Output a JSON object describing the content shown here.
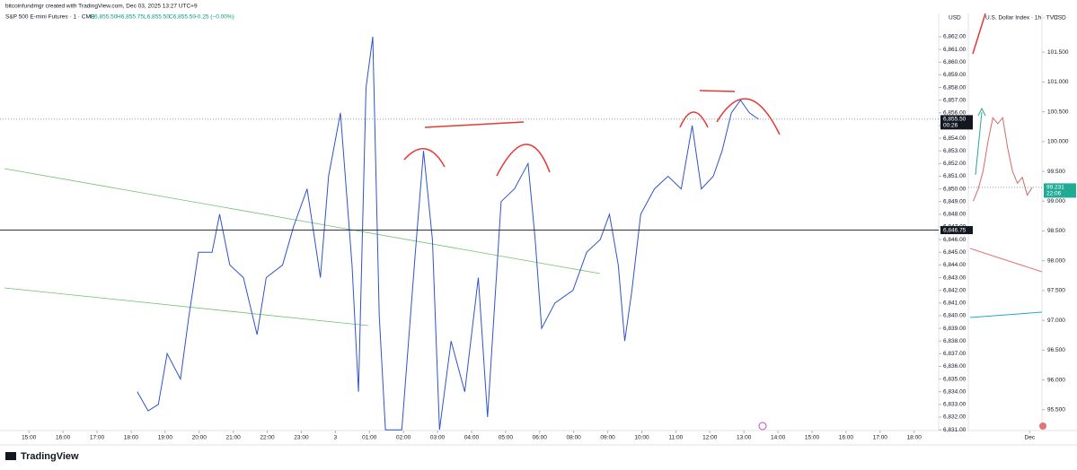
{
  "header": {
    "byline": "bitcoinfundmgr created with TradingView.com, Dec 03, 2025 13:27 UTC+9",
    "symbol": "S&P 500 E-mini Futures · 1 · CME",
    "open": "O6,855.50",
    "high": "H6,855.75",
    "low": "L6,855.50",
    "close": "C6,855.50",
    "change": "−0.25 (−0.00%)"
  },
  "footer": {
    "brand": "TradingView"
  },
  "chart_data": [
    {
      "type": "line",
      "currency": "USD",
      "color": "#2f54c9",
      "x": [
        3.18,
        3.5,
        3.8,
        4.06,
        4.45,
        4.7,
        4.98,
        5.38,
        5.6,
        5.9,
        6.3,
        6.7,
        6.97,
        7.45,
        7.77,
        8.17,
        8.56,
        8.8,
        9.15,
        9.49,
        9.68,
        9.9,
        10.1,
        10.29,
        10.47,
        10.95,
        11.35,
        11.59,
        11.85,
        12.06,
        12.4,
        12.8,
        13.2,
        13.47,
        13.87,
        14.26,
        14.66,
        14.87,
        15.06,
        15.45,
        15.98,
        16.38,
        16.78,
        17.05,
        17.31,
        17.5,
        17.71,
        17.97,
        18.37,
        18.77,
        19.16,
        19.48,
        19.75,
        20.1,
        20.36,
        20.63,
        20.9,
        21.16,
        21.43
      ],
      "values": [
        6834,
        6832.5,
        6833,
        6837,
        6835,
        6840,
        6845,
        6845,
        6848,
        6844,
        6843,
        6838.5,
        6843,
        6844,
        6847,
        6850,
        6843,
        6851,
        6856,
        6844,
        6834,
        6858,
        6862,
        6840,
        6831,
        6831,
        6845,
        6853,
        6846,
        6831,
        6838,
        6834,
        6843,
        6832,
        6849,
        6850,
        6852,
        6846,
        6839,
        6841,
        6842,
        6845,
        6846,
        6848,
        6844,
        6838,
        6842,
        6848,
        6850,
        6851,
        6850,
        6855,
        6850,
        6851,
        6853,
        6856,
        6857,
        6856,
        6855.5
      ],
      "xlim": [
        -0.85,
        26.72
      ],
      "ylim": [
        6830.94,
        6863.84
      ],
      "xticks": [
        {
          "value": 0,
          "label": "15:00"
        },
        {
          "value": 1,
          "label": "16:00"
        },
        {
          "value": 2,
          "label": "17:00"
        },
        {
          "value": 3,
          "label": "18:00"
        },
        {
          "value": 4,
          "label": "19:00"
        },
        {
          "value": 5,
          "label": "20:00"
        },
        {
          "value": 6,
          "label": "21:00"
        },
        {
          "value": 7,
          "label": "22:00"
        },
        {
          "value": 8,
          "label": "23:00"
        },
        {
          "value": 9,
          "label": "3"
        },
        {
          "value": 10,
          "label": "01:00"
        },
        {
          "value": 11,
          "label": "02:00"
        },
        {
          "value": 12,
          "label": "03:00"
        },
        {
          "value": 13,
          "label": "04:00"
        },
        {
          "value": 14,
          "label": "05:00"
        },
        {
          "value": 15,
          "label": "06:00"
        },
        {
          "value": 16,
          "label": "08:00"
        },
        {
          "value": 17,
          "label": "09:00"
        },
        {
          "value": 18,
          "label": "10:00"
        },
        {
          "value": 19,
          "label": "11:00"
        },
        {
          "value": 20,
          "label": "12:00"
        },
        {
          "value": 21,
          "label": "13:00"
        },
        {
          "value": 22,
          "label": "14:00"
        },
        {
          "value": 23,
          "label": "15:00"
        },
        {
          "value": 24,
          "label": "16:00"
        },
        {
          "value": 25,
          "label": "17:00"
        },
        {
          "value": 26,
          "label": "18:00"
        }
      ],
      "yticks": [
        {
          "value": 6831,
          "label": "6,831.00"
        },
        {
          "value": 6832,
          "label": "6,832.00"
        },
        {
          "value": 6833,
          "label": "6,833.00"
        },
        {
          "value": 6834,
          "label": "6,834.00"
        },
        {
          "value": 6835,
          "label": "6,835.00"
        },
        {
          "value": 6836,
          "label": "6,836.00"
        },
        {
          "value": 6837,
          "label": "6,837.00"
        },
        {
          "value": 6838,
          "label": "6,838.00"
        },
        {
          "value": 6839,
          "label": "6,839.00"
        },
        {
          "value": 6840,
          "label": "6,840.00"
        },
        {
          "value": 6841,
          "label": "6,841.00"
        },
        {
          "value": 6842,
          "label": "6,842.00"
        },
        {
          "value": 6843,
          "label": "6,843.00"
        },
        {
          "value": 6844,
          "label": "6,844.00"
        },
        {
          "value": 6845,
          "label": "6,845.00"
        },
        {
          "value": 6846,
          "label": "6,846.00"
        },
        {
          "value": 6847,
          "label": "6,847.00"
        },
        {
          "value": 6848,
          "label": "6,848.00"
        },
        {
          "value": 6849,
          "label": "6,849.00"
        },
        {
          "value": 6850,
          "label": "6,850.00"
        },
        {
          "value": 6851,
          "label": "6,851.00"
        },
        {
          "value": 6852,
          "label": "6,852.00"
        },
        {
          "value": 6853,
          "label": "6,853.00"
        },
        {
          "value": 6854,
          "label": "6,854.00"
        },
        {
          "value": 6855,
          "label": "6,855.00"
        },
        {
          "value": 6856,
          "label": "6,856.00"
        },
        {
          "value": 6857,
          "label": "6,857.00"
        },
        {
          "value": 6858,
          "label": "6,858.00"
        },
        {
          "value": 6859,
          "label": "6,859.00"
        },
        {
          "value": 6860,
          "label": "6,860.00"
        },
        {
          "value": 6861,
          "label": "6,861.00"
        },
        {
          "value": 6862,
          "label": "6,862.00"
        }
      ],
      "price_lines": [
        {
          "value": 6855.5,
          "label": "6,855.50",
          "countdown": "00:26",
          "style": "dotted"
        },
        {
          "value": 6846.75,
          "label": "6,846.75",
          "style": "solid"
        }
      ]
    },
    {
      "type": "line",
      "title": "U.S. Dollar Index · 1h · TVC",
      "currency": "USD",
      "color": "#d06a6a",
      "x": [
        0,
        1,
        2,
        3,
        4,
        5,
        6,
        7,
        8,
        9,
        10,
        11,
        12
      ],
      "values": [
        99.0,
        99.2,
        99.5,
        100.0,
        100.4,
        100.3,
        100.4,
        99.9,
        99.5,
        99.3,
        99.4,
        99.1,
        99.23
      ],
      "xlim": [
        -1,
        14
      ],
      "ylim": [
        95.15,
        102.15
      ],
      "xticks": [
        {
          "value": 11.5,
          "label": "Dec"
        }
      ],
      "yticks": [
        {
          "value": 95.5,
          "label": "95.500"
        },
        {
          "value": 96,
          "label": "96.000"
        },
        {
          "value": 96.5,
          "label": "96.500"
        },
        {
          "value": 97,
          "label": "97.000"
        },
        {
          "value": 97.5,
          "label": "97.500"
        },
        {
          "value": 98,
          "label": "98.000"
        },
        {
          "value": 98.5,
          "label": "98.500"
        },
        {
          "value": 99,
          "label": "99.000"
        },
        {
          "value": 99.5,
          "label": "99.500"
        },
        {
          "value": 100,
          "label": "100.000"
        },
        {
          "value": 100.5,
          "label": "100.500"
        },
        {
          "value": 101,
          "label": "101.000"
        },
        {
          "value": 101.5,
          "label": "101.500"
        }
      ],
      "price_lines": [
        {
          "value": 99.231,
          "label": "99.231",
          "countdown": "22:06",
          "style": "dotted",
          "tag": "#22ab94"
        }
      ]
    }
  ]
}
